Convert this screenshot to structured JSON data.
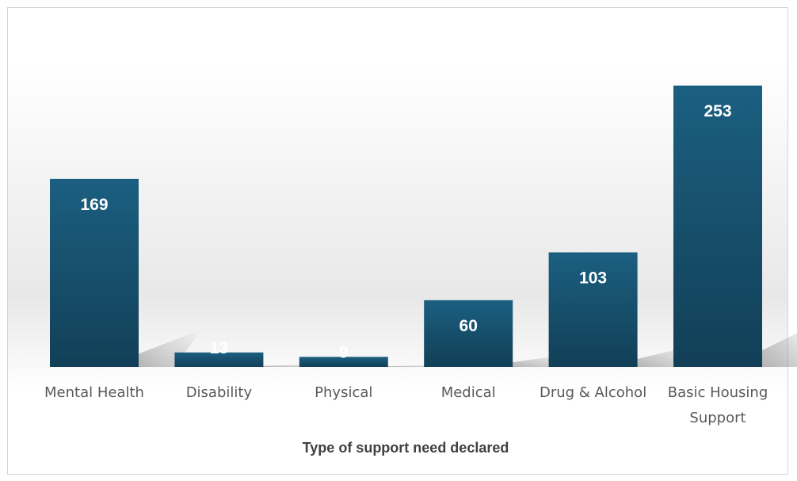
{
  "chart_data": {
    "type": "bar",
    "categories": [
      [
        "Mental Health"
      ],
      [
        "Disability"
      ],
      [
        "Physical"
      ],
      [
        "Medical"
      ],
      [
        "Drug & Alcohol"
      ],
      [
        "Basic Housing",
        "Support"
      ]
    ],
    "values": [
      169,
      13,
      9,
      60,
      103,
      253
    ],
    "title": "",
    "xlabel": "Type of support need declared",
    "ylabel": "",
    "ylim": [
      0,
      253
    ],
    "data_labels": true,
    "grid": false,
    "legend": "none",
    "colors": {
      "bar_top": "#1b5f80",
      "bar_bottom": "#123f57",
      "shadow": "#8a8a8a",
      "data_label": "#ffffff",
      "category_text": "#595959",
      "axis_title_text": "#404040"
    }
  }
}
